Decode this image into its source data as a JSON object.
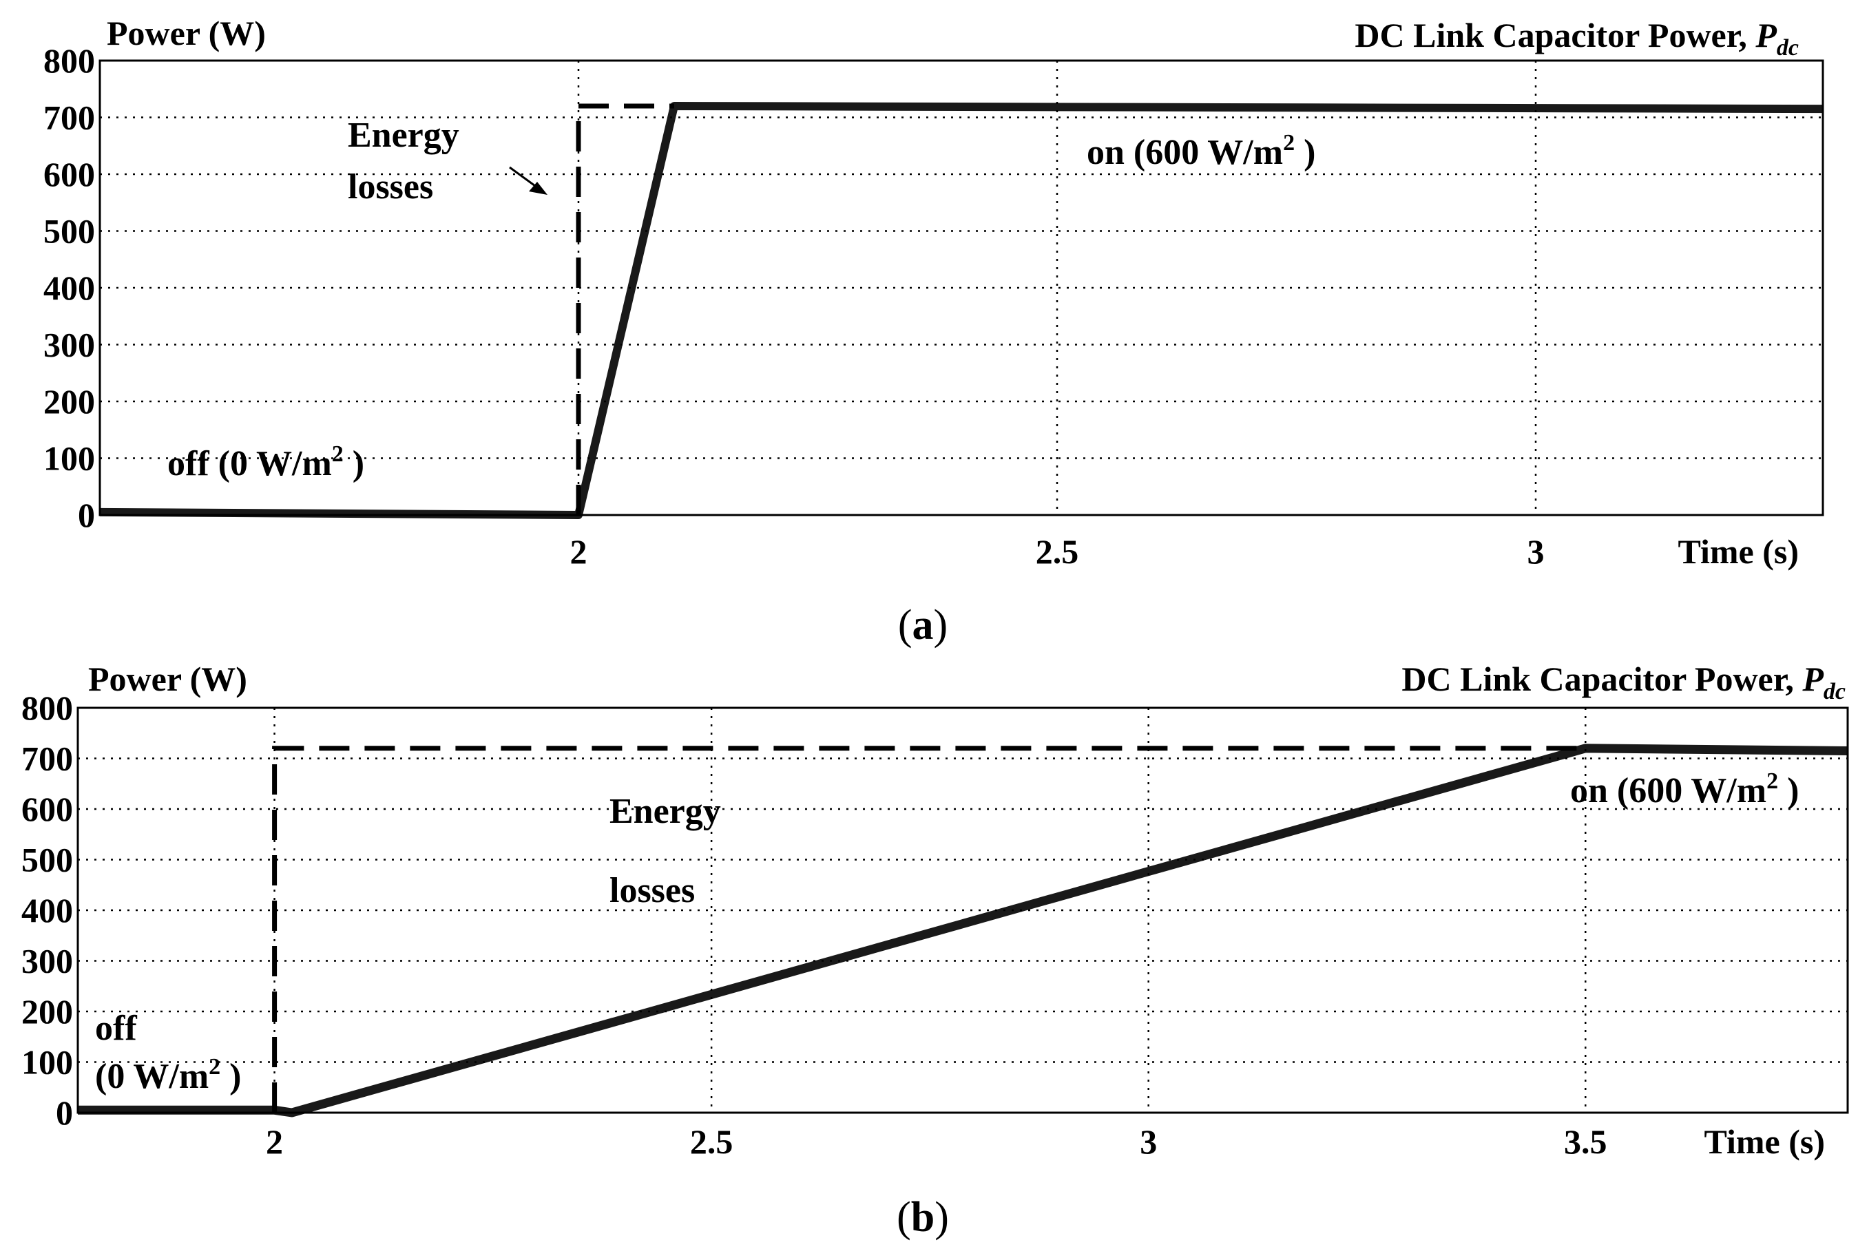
{
  "chart_data": [
    {
      "type": "line",
      "panel_label": "(a)",
      "caption_letter": "a",
      "title": "DC Link Capacitor  Power, ",
      "title_symbol": "P",
      "title_subscript": "dc",
      "ylabel": "Power (W)",
      "xlabel": "Time (s)",
      "ylim": [
        0,
        800
      ],
      "xlim": [
        1.5,
        3.3
      ],
      "yticks": [
        0,
        100,
        200,
        300,
        400,
        500,
        600,
        700,
        800
      ],
      "xticks": [
        2,
        2.5,
        3
      ],
      "grid": true,
      "series": [
        {
          "style": "solid",
          "x": [
            1.5,
            2.0,
            2.1,
            3.3
          ],
          "y": [
            5,
            0,
            720,
            715
          ]
        },
        {
          "style": "dashed",
          "x": [
            2.0,
            2.0,
            2.1
          ],
          "y": [
            0,
            720,
            720
          ]
        }
      ],
      "annotations": {
        "energy_line1": "Energy",
        "energy_line2": "losses",
        "on_text": "on (600 W/m",
        "on_sup": "2",
        "on_close": " )",
        "off_text": "off (0 W/m",
        "off_sup": "2",
        "off_close": " )"
      }
    },
    {
      "type": "line",
      "panel_label": "(b)",
      "caption_letter": "b",
      "title": "DC Link Capacitor  Power, ",
      "title_symbol": "P",
      "title_subscript": "dc",
      "ylabel": "Power (W)",
      "xlabel": "Time (s)",
      "ylim": [
        0,
        800
      ],
      "xlim": [
        1.775,
        3.8
      ],
      "yticks": [
        0,
        100,
        200,
        300,
        400,
        500,
        600,
        700,
        800
      ],
      "xticks": [
        2,
        2.5,
        3,
        3.5
      ],
      "grid": true,
      "series": [
        {
          "style": "solid",
          "x": [
            1.775,
            2.0,
            2.02,
            3.5,
            3.8
          ],
          "y": [
            5,
            5,
            0,
            720,
            715
          ]
        },
        {
          "style": "dashed",
          "x": [
            2.0,
            2.0,
            3.5
          ],
          "y": [
            0,
            720,
            720
          ]
        }
      ],
      "annotations": {
        "energy_line1": "Energy",
        "energy_line2": "losses",
        "on_text": "on (600 W/m",
        "on_sup": "2",
        "on_close": " )",
        "off_text": "off",
        "off_line2": "(0 W/m",
        "off_sup": "2",
        "off_close": " )"
      }
    }
  ]
}
